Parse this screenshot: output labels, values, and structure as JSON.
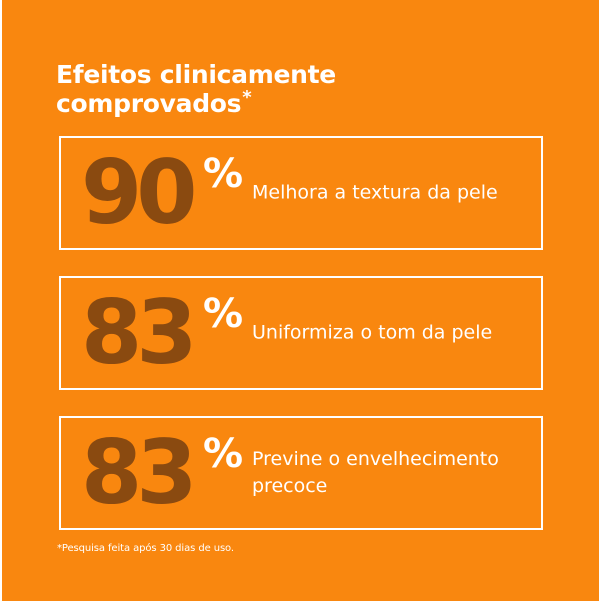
{
  "title": {
    "line1": "Efeitos clinicamente",
    "line2": "comprovados",
    "asterisk": "*"
  },
  "stats": [
    {
      "number": "90",
      "percent": "%",
      "label": "Melhora a textura da pele"
    },
    {
      "number": "83",
      "percent": "%",
      "label": "Uniformiza o tom da pele"
    },
    {
      "number": "83",
      "percent": "%",
      "label": "Previne o envelhecimento precoce"
    }
  ],
  "footnote": "*Pesquisa feita após 30 dias de uso.",
  "colors": {
    "background": "#f9870f",
    "number": "#8a4a10",
    "text": "#ffffff"
  }
}
